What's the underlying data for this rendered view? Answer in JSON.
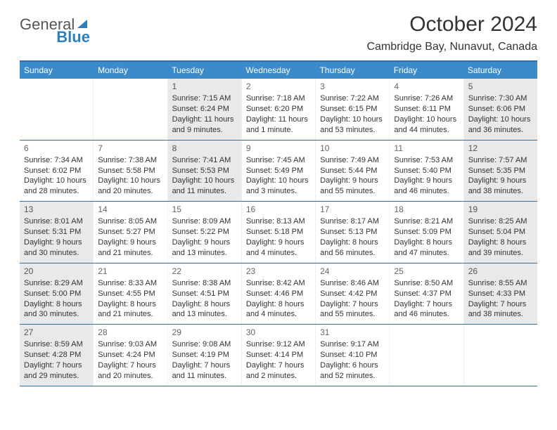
{
  "logo": {
    "general": "General",
    "blue": "Blue"
  },
  "title": "October 2024",
  "location": "Cambridge Bay, Nunavut, Canada",
  "colors": {
    "header_bg": "#3b8bca",
    "header_border": "#2f6fa3",
    "shade_bg": "#e9e9e9",
    "text": "#333333",
    "logo_gray": "#555555",
    "logo_blue": "#2e7fbe"
  },
  "day_names": [
    "Sunday",
    "Monday",
    "Tuesday",
    "Wednesday",
    "Thursday",
    "Friday",
    "Saturday"
  ],
  "weeks": [
    [
      {
        "blank": true
      },
      {
        "blank": true
      },
      {
        "day": "1",
        "shade": true,
        "sunrise": "Sunrise: 7:15 AM",
        "sunset": "Sunset: 6:24 PM",
        "daylight": "Daylight: 11 hours and 9 minutes."
      },
      {
        "day": "2",
        "sunrise": "Sunrise: 7:18 AM",
        "sunset": "Sunset: 6:20 PM",
        "daylight": "Daylight: 11 hours and 1 minute."
      },
      {
        "day": "3",
        "sunrise": "Sunrise: 7:22 AM",
        "sunset": "Sunset: 6:15 PM",
        "daylight": "Daylight: 10 hours and 53 minutes."
      },
      {
        "day": "4",
        "sunrise": "Sunrise: 7:26 AM",
        "sunset": "Sunset: 6:11 PM",
        "daylight": "Daylight: 10 hours and 44 minutes."
      },
      {
        "day": "5",
        "shade": true,
        "sunrise": "Sunrise: 7:30 AM",
        "sunset": "Sunset: 6:06 PM",
        "daylight": "Daylight: 10 hours and 36 minutes."
      }
    ],
    [
      {
        "day": "6",
        "sunrise": "Sunrise: 7:34 AM",
        "sunset": "Sunset: 6:02 PM",
        "daylight": "Daylight: 10 hours and 28 minutes."
      },
      {
        "day": "7",
        "sunrise": "Sunrise: 7:38 AM",
        "sunset": "Sunset: 5:58 PM",
        "daylight": "Daylight: 10 hours and 20 minutes."
      },
      {
        "day": "8",
        "shade": true,
        "sunrise": "Sunrise: 7:41 AM",
        "sunset": "Sunset: 5:53 PM",
        "daylight": "Daylight: 10 hours and 11 minutes."
      },
      {
        "day": "9",
        "sunrise": "Sunrise: 7:45 AM",
        "sunset": "Sunset: 5:49 PM",
        "daylight": "Daylight: 10 hours and 3 minutes."
      },
      {
        "day": "10",
        "sunrise": "Sunrise: 7:49 AM",
        "sunset": "Sunset: 5:44 PM",
        "daylight": "Daylight: 9 hours and 55 minutes."
      },
      {
        "day": "11",
        "sunrise": "Sunrise: 7:53 AM",
        "sunset": "Sunset: 5:40 PM",
        "daylight": "Daylight: 9 hours and 46 minutes."
      },
      {
        "day": "12",
        "shade": true,
        "sunrise": "Sunrise: 7:57 AM",
        "sunset": "Sunset: 5:35 PM",
        "daylight": "Daylight: 9 hours and 38 minutes."
      }
    ],
    [
      {
        "day": "13",
        "shade": true,
        "sunrise": "Sunrise: 8:01 AM",
        "sunset": "Sunset: 5:31 PM",
        "daylight": "Daylight: 9 hours and 30 minutes."
      },
      {
        "day": "14",
        "sunrise": "Sunrise: 8:05 AM",
        "sunset": "Sunset: 5:27 PM",
        "daylight": "Daylight: 9 hours and 21 minutes."
      },
      {
        "day": "15",
        "sunrise": "Sunrise: 8:09 AM",
        "sunset": "Sunset: 5:22 PM",
        "daylight": "Daylight: 9 hours and 13 minutes."
      },
      {
        "day": "16",
        "sunrise": "Sunrise: 8:13 AM",
        "sunset": "Sunset: 5:18 PM",
        "daylight": "Daylight: 9 hours and 4 minutes."
      },
      {
        "day": "17",
        "sunrise": "Sunrise: 8:17 AM",
        "sunset": "Sunset: 5:13 PM",
        "daylight": "Daylight: 8 hours and 56 minutes."
      },
      {
        "day": "18",
        "sunrise": "Sunrise: 8:21 AM",
        "sunset": "Sunset: 5:09 PM",
        "daylight": "Daylight: 8 hours and 47 minutes."
      },
      {
        "day": "19",
        "shade": true,
        "sunrise": "Sunrise: 8:25 AM",
        "sunset": "Sunset: 5:04 PM",
        "daylight": "Daylight: 8 hours and 39 minutes."
      }
    ],
    [
      {
        "day": "20",
        "shade": true,
        "sunrise": "Sunrise: 8:29 AM",
        "sunset": "Sunset: 5:00 PM",
        "daylight": "Daylight: 8 hours and 30 minutes."
      },
      {
        "day": "21",
        "sunrise": "Sunrise: 8:33 AM",
        "sunset": "Sunset: 4:55 PM",
        "daylight": "Daylight: 8 hours and 21 minutes."
      },
      {
        "day": "22",
        "sunrise": "Sunrise: 8:38 AM",
        "sunset": "Sunset: 4:51 PM",
        "daylight": "Daylight: 8 hours and 13 minutes."
      },
      {
        "day": "23",
        "sunrise": "Sunrise: 8:42 AM",
        "sunset": "Sunset: 4:46 PM",
        "daylight": "Daylight: 8 hours and 4 minutes."
      },
      {
        "day": "24",
        "sunrise": "Sunrise: 8:46 AM",
        "sunset": "Sunset: 4:42 PM",
        "daylight": "Daylight: 7 hours and 55 minutes."
      },
      {
        "day": "25",
        "sunrise": "Sunrise: 8:50 AM",
        "sunset": "Sunset: 4:37 PM",
        "daylight": "Daylight: 7 hours and 46 minutes."
      },
      {
        "day": "26",
        "shade": true,
        "sunrise": "Sunrise: 8:55 AM",
        "sunset": "Sunset: 4:33 PM",
        "daylight": "Daylight: 7 hours and 38 minutes."
      }
    ],
    [
      {
        "day": "27",
        "shade": true,
        "sunrise": "Sunrise: 8:59 AM",
        "sunset": "Sunset: 4:28 PM",
        "daylight": "Daylight: 7 hours and 29 minutes."
      },
      {
        "day": "28",
        "sunrise": "Sunrise: 9:03 AM",
        "sunset": "Sunset: 4:24 PM",
        "daylight": "Daylight: 7 hours and 20 minutes."
      },
      {
        "day": "29",
        "sunrise": "Sunrise: 9:08 AM",
        "sunset": "Sunset: 4:19 PM",
        "daylight": "Daylight: 7 hours and 11 minutes."
      },
      {
        "day": "30",
        "sunrise": "Sunrise: 9:12 AM",
        "sunset": "Sunset: 4:14 PM",
        "daylight": "Daylight: 7 hours and 2 minutes."
      },
      {
        "day": "31",
        "sunrise": "Sunrise: 9:17 AM",
        "sunset": "Sunset: 4:10 PM",
        "daylight": "Daylight: 6 hours and 52 minutes."
      },
      {
        "blank": true
      },
      {
        "blank": true
      }
    ]
  ]
}
